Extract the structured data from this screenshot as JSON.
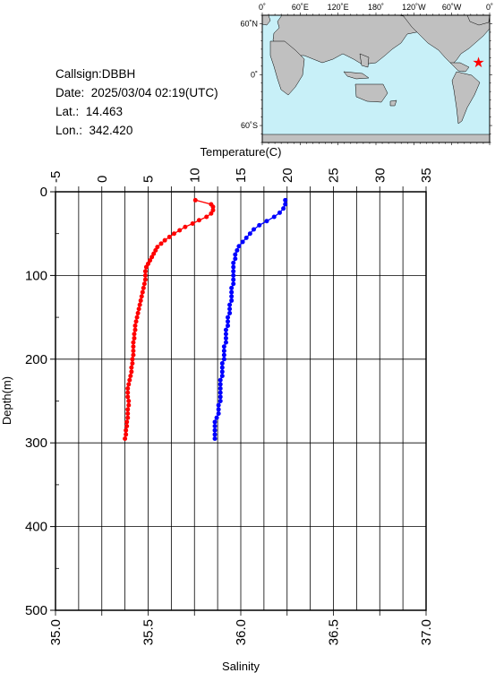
{
  "info": {
    "callsign": "Callsign:DBBH",
    "date": "Date:  2025/03/04 02:19(UTC)",
    "lat": "Lat.:  14.463",
    "lon": "Lon.:  342.420"
  },
  "map": {
    "top_ticks": [
      "0˚",
      "60˚E",
      "120˚E",
      "180˚",
      "120˚W",
      "60˚W",
      "0˚"
    ],
    "left_ticks": [
      "60˚N",
      "0˚",
      "60˚S"
    ],
    "ocean_color": "#c8f0f8",
    "land_color": "#c0c0c0",
    "marker_lon": 342.42,
    "marker_lat": 14.463,
    "marker_color": "#ff0000"
  },
  "chart_data": {
    "type": "scatter",
    "top_axis_label": "Temperature(C)",
    "bottom_axis_label": "Salinity",
    "y_axis_label": "Depth(m)",
    "temperature_range": [
      -5,
      35
    ],
    "salinity_range": [
      35.0,
      37.0
    ],
    "depth_range": [
      0,
      500
    ],
    "temperature_ticks": [
      "-5",
      "0",
      "5",
      "10",
      "15",
      "20",
      "25",
      "30",
      "35"
    ],
    "salinity_ticks": [
      "35.0",
      "35.5",
      "36.0",
      "36.5",
      "37.0"
    ],
    "depth_ticks": [
      "0",
      "100",
      "200",
      "300",
      "400",
      "500"
    ],
    "grid": true,
    "series": [
      {
        "color": "#ff0000",
        "axis": "temperature",
        "depth": [
          10,
          15,
          18,
          22,
          26,
          30,
          34,
          38,
          42,
          46,
          50,
          54,
          58,
          62,
          66,
          70,
          74,
          78,
          82,
          86,
          90,
          95,
          100,
          105,
          110,
          115,
          120,
          125,
          130,
          135,
          140,
          145,
          150,
          155,
          160,
          165,
          170,
          175,
          180,
          185,
          190,
          195,
          200,
          205,
          210,
          215,
          220,
          225,
          230,
          235,
          240,
          245,
          250,
          255,
          260,
          265,
          270,
          275,
          280,
          285,
          290,
          295
        ],
        "values": [
          10.1,
          11.8,
          12.0,
          12.0,
          11.8,
          11.3,
          10.5,
          9.8,
          9.0,
          8.4,
          7.8,
          7.3,
          6.8,
          6.4,
          6.0,
          5.8,
          5.6,
          5.4,
          5.2,
          5.0,
          4.8,
          4.7,
          4.7,
          4.7,
          4.6,
          4.5,
          4.4,
          4.3,
          4.2,
          4.1,
          4.0,
          3.9,
          3.8,
          3.7,
          3.6,
          3.6,
          3.5,
          3.5,
          3.4,
          3.4,
          3.4,
          3.4,
          3.3,
          3.3,
          3.2,
          3.2,
          3.1,
          3.0,
          2.9,
          2.8,
          2.8,
          2.8,
          2.9,
          2.9,
          2.8,
          2.8,
          2.8,
          2.7,
          2.7,
          2.6,
          2.6,
          2.5
        ]
      },
      {
        "color": "#0000ff",
        "axis": "salinity",
        "depth": [
          10,
          15,
          20,
          25,
          30,
          35,
          40,
          45,
          50,
          55,
          60,
          65,
          70,
          75,
          80,
          85,
          90,
          95,
          100,
          105,
          110,
          115,
          120,
          125,
          130,
          135,
          140,
          145,
          150,
          155,
          160,
          165,
          170,
          175,
          180,
          185,
          190,
          195,
          200,
          205,
          210,
          215,
          220,
          225,
          230,
          235,
          240,
          245,
          250,
          255,
          260,
          265,
          270,
          275,
          280,
          285,
          290,
          295
        ],
        "values": [
          36.24,
          36.24,
          36.23,
          36.21,
          36.18,
          36.14,
          36.1,
          36.07,
          36.05,
          36.03,
          36.01,
          35.99,
          35.98,
          35.97,
          35.97,
          35.96,
          35.96,
          35.96,
          35.96,
          35.96,
          35.96,
          35.95,
          35.95,
          35.95,
          35.95,
          35.94,
          35.94,
          35.94,
          35.93,
          35.93,
          35.93,
          35.92,
          35.92,
          35.92,
          35.92,
          35.91,
          35.91,
          35.91,
          35.91,
          35.9,
          35.9,
          35.9,
          35.9,
          35.89,
          35.89,
          35.89,
          35.89,
          35.89,
          35.89,
          35.88,
          35.88,
          35.88,
          35.87,
          35.86,
          35.86,
          35.86,
          35.86,
          35.86
        ]
      }
    ]
  }
}
